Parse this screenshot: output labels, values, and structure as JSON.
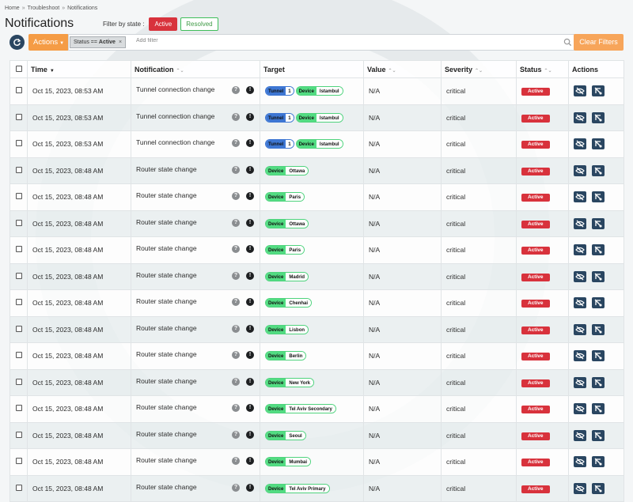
{
  "breadcrumb": [
    "Home",
    "Troubleshoot",
    "Notifications"
  ],
  "page_title": "Notifications",
  "filter_state": {
    "label": "Filter by state :",
    "active_label": "Active",
    "resolved_label": "Resolved"
  },
  "toolbar": {
    "actions_label": "Actions",
    "filter_tag_prefix": "Status == ",
    "filter_tag_value": "Active",
    "filter_tag_close": "×",
    "filter_placeholder": "Add filter",
    "clear_label": "Clear Filters"
  },
  "columns": {
    "time": "Time",
    "notification": "Notification",
    "target": "Target",
    "value": "Value",
    "severity": "Severity",
    "status": "Status",
    "actions": "Actions"
  },
  "colors": {
    "active_red": "#d8323c",
    "orange": "#f59c45",
    "navy": "#2a4661",
    "device_green": "#52dc82",
    "tunnel_blue": "#3d76d3"
  },
  "rows": [
    {
      "time": "Oct 15, 2023, 08:53 AM",
      "notification": "Tunnel connection change",
      "tunnel_label": "Tunnel",
      "tunnel_value": "1",
      "device_label": "Device",
      "device_value": "Istambul",
      "value": "N/A",
      "severity": "critical",
      "status": "Active"
    },
    {
      "time": "Oct 15, 2023, 08:53 AM",
      "notification": "Tunnel connection change",
      "tunnel_label": "Tunnel",
      "tunnel_value": "1",
      "device_label": "Device",
      "device_value": "Istambul",
      "value": "N/A",
      "severity": "critical",
      "status": "Active"
    },
    {
      "time": "Oct 15, 2023, 08:53 AM",
      "notification": "Tunnel connection change",
      "tunnel_label": "Tunnel",
      "tunnel_value": "1",
      "device_label": "Device",
      "device_value": "Istambul",
      "value": "N/A",
      "severity": "critical",
      "status": "Active"
    },
    {
      "time": "Oct 15, 2023, 08:48 AM",
      "notification": "Router state change",
      "device_label": "Device",
      "device_value": "Ottawa",
      "value": "N/A",
      "severity": "critical",
      "status": "Active"
    },
    {
      "time": "Oct 15, 2023, 08:48 AM",
      "notification": "Router state change",
      "device_label": "Device",
      "device_value": "Paris",
      "value": "N/A",
      "severity": "critical",
      "status": "Active"
    },
    {
      "time": "Oct 15, 2023, 08:48 AM",
      "notification": "Router state change",
      "device_label": "Device",
      "device_value": "Ottawa",
      "value": "N/A",
      "severity": "critical",
      "status": "Active"
    },
    {
      "time": "Oct 15, 2023, 08:48 AM",
      "notification": "Router state change",
      "device_label": "Device",
      "device_value": "Paris",
      "value": "N/A",
      "severity": "critical",
      "status": "Active"
    },
    {
      "time": "Oct 15, 2023, 08:48 AM",
      "notification": "Router state change",
      "device_label": "Device",
      "device_value": "Madrid",
      "value": "N/A",
      "severity": "critical",
      "status": "Active"
    },
    {
      "time": "Oct 15, 2023, 08:48 AM",
      "notification": "Router state change",
      "device_label": "Device",
      "device_value": "Chenhai",
      "value": "N/A",
      "severity": "critical",
      "status": "Active"
    },
    {
      "time": "Oct 15, 2023, 08:48 AM",
      "notification": "Router state change",
      "device_label": "Device",
      "device_value": "Lisbon",
      "value": "N/A",
      "severity": "critical",
      "status": "Active"
    },
    {
      "time": "Oct 15, 2023, 08:48 AM",
      "notification": "Router state change",
      "device_label": "Device",
      "device_value": "Berlin",
      "value": "N/A",
      "severity": "critical",
      "status": "Active"
    },
    {
      "time": "Oct 15, 2023, 08:48 AM",
      "notification": "Router state change",
      "device_label": "Device",
      "device_value": "New York",
      "value": "N/A",
      "severity": "critical",
      "status": "Active"
    },
    {
      "time": "Oct 15, 2023, 08:48 AM",
      "notification": "Router state change",
      "device_label": "Device",
      "device_value": "Tel Aviv Secondary",
      "value": "N/A",
      "severity": "critical",
      "status": "Active"
    },
    {
      "time": "Oct 15, 2023, 08:48 AM",
      "notification": "Router state change",
      "device_label": "Device",
      "device_value": "Seoul",
      "value": "N/A",
      "severity": "critical",
      "status": "Active"
    },
    {
      "time": "Oct 15, 2023, 08:48 AM",
      "notification": "Router state change",
      "device_label": "Device",
      "device_value": "Mumbai",
      "value": "N/A",
      "severity": "critical",
      "status": "Active"
    },
    {
      "time": "Oct 15, 2023, 08:48 AM",
      "notification": "Router state change",
      "device_label": "Device",
      "device_value": "Tel Aviv Primary",
      "value": "N/A",
      "severity": "critical",
      "status": "Active"
    }
  ]
}
